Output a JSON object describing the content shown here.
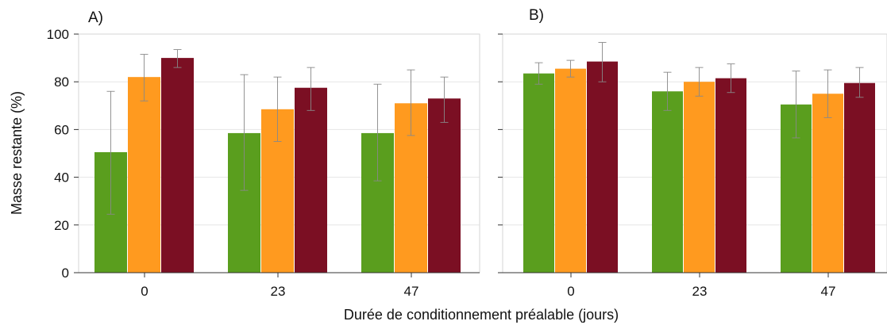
{
  "figure": {
    "ylabel": "Masse restante (%)",
    "xlabel": "Durée de conditionnement préalable (jours)"
  },
  "chart_data": [
    {
      "type": "bar",
      "panel_label": "A)",
      "categories": [
        "0",
        "23",
        "47"
      ],
      "ylim": [
        0,
        100
      ],
      "yticks": [
        0,
        20,
        40,
        60,
        80,
        100
      ],
      "grid": true,
      "colors": [
        "#5a9e1e",
        "#ff9a1f",
        "#7b0f23"
      ],
      "series": [
        {
          "values": [
            50.5,
            58.5,
            58.5
          ],
          "err_low": [
            24.5,
            34.5,
            38.5
          ],
          "err_high": [
            76,
            83,
            79
          ]
        },
        {
          "values": [
            82,
            68.5,
            71
          ],
          "err_low": [
            72,
            55,
            57.5
          ],
          "err_high": [
            91.5,
            82,
            85
          ]
        },
        {
          "values": [
            90,
            77.5,
            73
          ],
          "err_low": [
            86,
            68,
            63
          ],
          "err_high": [
            93.5,
            86,
            82
          ]
        }
      ]
    },
    {
      "type": "bar",
      "panel_label": "B)",
      "categories": [
        "0",
        "23",
        "47"
      ],
      "ylim": [
        0,
        100
      ],
      "yticks": [
        0,
        20,
        40,
        60,
        80,
        100
      ],
      "grid": true,
      "colors": [
        "#5a9e1e",
        "#ff9a1f",
        "#7b0f23"
      ],
      "series": [
        {
          "values": [
            83.5,
            76,
            70.5
          ],
          "err_low": [
            79,
            68,
            56.5
          ],
          "err_high": [
            88,
            84,
            84.5
          ]
        },
        {
          "values": [
            85.5,
            80,
            75
          ],
          "err_low": [
            82,
            74,
            65
          ],
          "err_high": [
            89,
            86,
            85
          ]
        },
        {
          "values": [
            88.5,
            81.5,
            79.5
          ],
          "err_low": [
            80,
            75.5,
            73.5
          ],
          "err_high": [
            96.5,
            87.5,
            86
          ]
        }
      ]
    }
  ]
}
